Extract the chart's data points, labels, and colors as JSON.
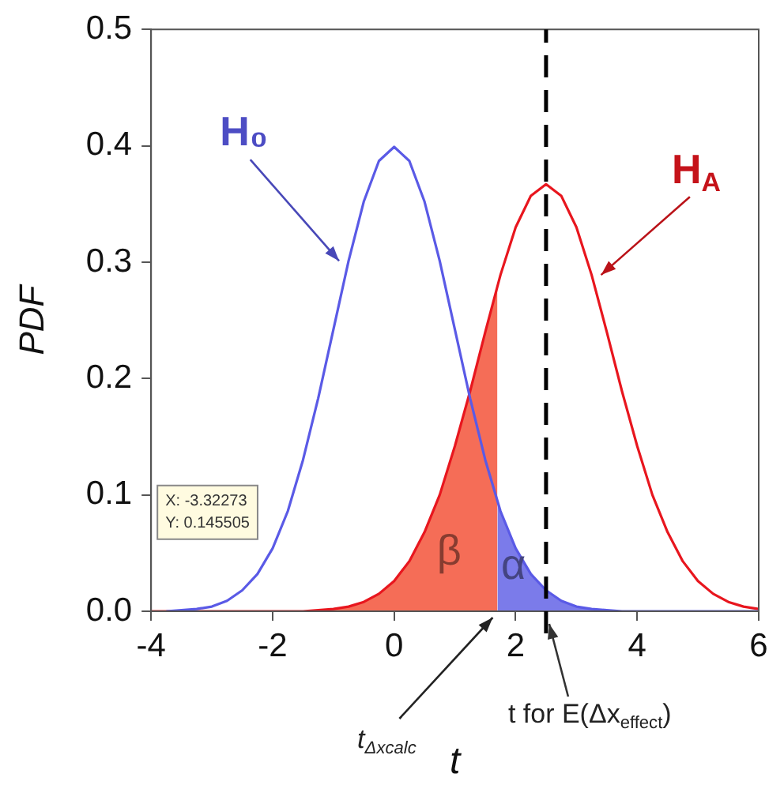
{
  "chart_data": {
    "type": "line",
    "xlabel": "t",
    "ylabel": "PDF",
    "xlim": [
      -4,
      6
    ],
    "xticks": [
      -4,
      -2,
      0,
      2,
      4,
      6
    ],
    "ylim": [
      0,
      0.5
    ],
    "yticks": [
      {
        "value": 0,
        "label": "0.0"
      },
      {
        "value": 0.1,
        "label": "0.1"
      },
      {
        "value": 0.2,
        "label": "0.2"
      },
      {
        "value": 0.3,
        "label": "0.3"
      },
      {
        "value": 0.4,
        "label": "0.4"
      },
      {
        "value": 0.5,
        "label": "0.5"
      }
    ],
    "grid": false,
    "legend": false,
    "marker": "none",
    "series": [
      {
        "name": "H₀",
        "color": "#5a5ae6",
        "x": [
          -3.75,
          -3.5,
          -3.25,
          -3,
          -2.75,
          -2.5,
          -2.25,
          -2,
          -1.75,
          -1.5,
          -1.25,
          -1,
          -0.75,
          -0.5,
          -0.25,
          0,
          0.25,
          0.5,
          0.75,
          1,
          1.25,
          1.5,
          1.75,
          2,
          2.25,
          2.5,
          2.75,
          3,
          3.25,
          3.5,
          3.75,
          4,
          4.5,
          5,
          6
        ],
        "values": [
          0,
          0.001,
          0.002,
          0.004,
          0.009,
          0.018,
          0.032,
          0.054,
          0.086,
          0.13,
          0.183,
          0.242,
          0.301,
          0.352,
          0.387,
          0.399,
          0.387,
          0.352,
          0.301,
          0.242,
          0.183,
          0.13,
          0.086,
          0.054,
          0.032,
          0.018,
          0.009,
          0.004,
          0.002,
          0.001,
          0,
          0,
          0,
          0,
          0
        ]
      },
      {
        "name": "H$_{A}$",
        "color": "#e8161e",
        "x": [
          -4,
          -2.5,
          -2,
          -1.75,
          -1.5,
          -1.25,
          -1,
          -0.75,
          -0.5,
          -0.25,
          0,
          0.25,
          0.5,
          0.75,
          1,
          1.25,
          1.5,
          1.75,
          2,
          2.25,
          2.5,
          2.75,
          3,
          3.25,
          3.5,
          3.75,
          4,
          4.25,
          4.5,
          4.75,
          5,
          5.25,
          5.5,
          5.75,
          6
        ],
        "values": [
          0,
          0,
          0,
          0,
          0,
          0.001,
          0.002,
          0.004,
          0.008,
          0.015,
          0.026,
          0.043,
          0.068,
          0.1,
          0.142,
          0.189,
          0.24,
          0.289,
          0.33,
          0.357,
          0.367,
          0.357,
          0.33,
          0.289,
          0.24,
          0.189,
          0.142,
          0.1,
          0.068,
          0.043,
          0.026,
          0.015,
          0.008,
          0.004,
          0.002
        ]
      },
      {
        "name": "β",
        "type": "area",
        "color": "#f56d57",
        "x": [
          -4,
          -2.5,
          -2,
          -1.75,
          -1.5,
          -1.25,
          -1,
          -0.75,
          -0.5,
          -0.25,
          0,
          0.25,
          0.5,
          0.75,
          1,
          1.25,
          1.5,
          1.7
        ],
        "values": [
          0,
          0,
          0,
          0,
          0,
          0.001,
          0.002,
          0.004,
          0.008,
          0.015,
          0.026,
          0.043,
          0.068,
          0.1,
          0.142,
          0.189,
          0.24,
          0.279
        ]
      },
      {
        "name": "α",
        "type": "area",
        "color": "#7b7bea",
        "x": [
          1.7,
          1.75,
          2,
          2.25,
          2.5,
          2.75,
          3,
          3.25,
          3.5,
          3.75,
          4,
          4.5,
          5,
          6
        ],
        "values": [
          0.094,
          0.086,
          0.054,
          0.032,
          0.018,
          0.009,
          0.004,
          0.002,
          0.001,
          0,
          0,
          0,
          0,
          0
        ]
      }
    ],
    "ref_lines": [
      {
        "axis": "x",
        "value": 2.5,
        "label": "t for E(Δx$_{effect}$)",
        "color": "#000000",
        "line_style": "dashed"
      }
    ],
    "annotations": [
      {
        "text": "t$_{Δxcalc}$",
        "x": 1.7,
        "y": 0
      },
      "X: -3.32273",
      "Y: 0.145505"
    ]
  }
}
